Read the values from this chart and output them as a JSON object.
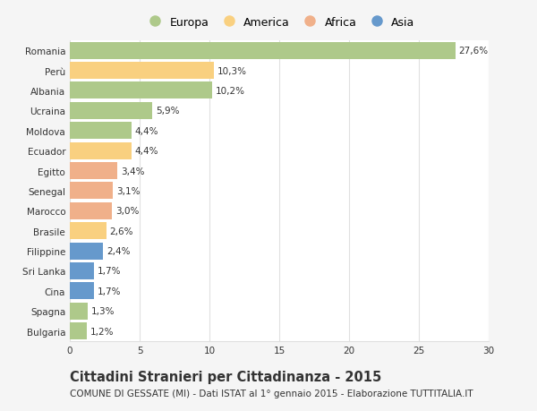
{
  "categories": [
    "Romania",
    "Perù",
    "Albania",
    "Ucraina",
    "Moldova",
    "Ecuador",
    "Egitto",
    "Senegal",
    "Marocco",
    "Brasile",
    "Filippine",
    "Sri Lanka",
    "Cina",
    "Spagna",
    "Bulgaria"
  ],
  "values": [
    27.6,
    10.3,
    10.2,
    5.9,
    4.4,
    4.4,
    3.4,
    3.1,
    3.0,
    2.6,
    2.4,
    1.7,
    1.7,
    1.3,
    1.2
  ],
  "labels": [
    "27,6%",
    "10,3%",
    "10,2%",
    "5,9%",
    "4,4%",
    "4,4%",
    "3,4%",
    "3,1%",
    "3,0%",
    "2,6%",
    "2,4%",
    "1,7%",
    "1,7%",
    "1,3%",
    "1,2%"
  ],
  "continents": [
    "Europa",
    "America",
    "Europa",
    "Europa",
    "Europa",
    "America",
    "Africa",
    "Africa",
    "Africa",
    "America",
    "Asia",
    "Asia",
    "Asia",
    "Europa",
    "Europa"
  ],
  "continent_colors": {
    "Europa": "#aec98a",
    "America": "#f9d080",
    "Africa": "#f0b08a",
    "Asia": "#6699cc"
  },
  "legend_order": [
    "Europa",
    "America",
    "Africa",
    "Asia"
  ],
  "title": "Cittadini Stranieri per Cittadinanza - 2015",
  "subtitle": "COMUNE DI GESSATE (MI) - Dati ISTAT al 1° gennaio 2015 - Elaborazione TUTTITALIA.IT",
  "xlim": [
    0,
    30
  ],
  "xticks": [
    0,
    5,
    10,
    15,
    20,
    25,
    30
  ],
  "background_color": "#f5f5f5",
  "bar_background": "#ffffff",
  "grid_color": "#e0e0e0",
  "text_color": "#333333",
  "label_fontsize": 7.5,
  "title_fontsize": 10.5,
  "subtitle_fontsize": 7.5,
  "tick_fontsize": 7.5,
  "legend_fontsize": 9
}
